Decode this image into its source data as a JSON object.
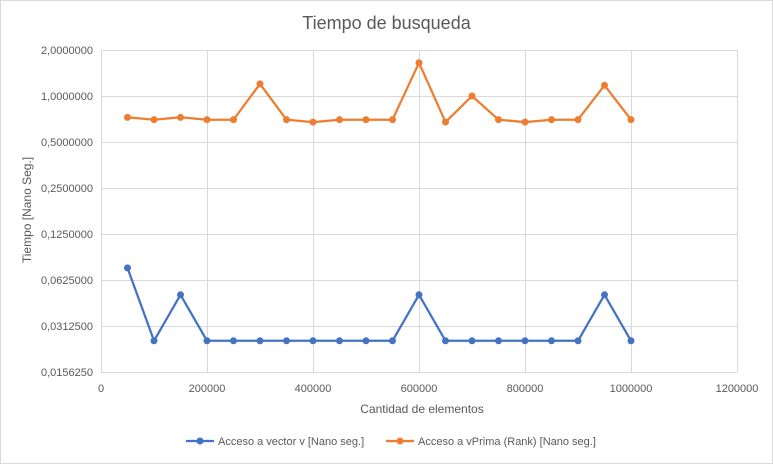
{
  "chart_data": {
    "type": "scatter",
    "title": "Tiempo de busqueda",
    "xlabel": "Cantidad de elementos",
    "ylabel": "Tiempo [Nano Seg.]",
    "x_scale": "linear",
    "y_scale": "log2",
    "xlim": [
      0,
      1200000
    ],
    "ylim": [
      0.015625,
      2
    ],
    "x_ticks": [
      0,
      200000,
      400000,
      600000,
      800000,
      1000000,
      1200000
    ],
    "x_tick_labels": [
      "0",
      "200000",
      "400000",
      "600000",
      "800000",
      "1000000",
      "1200000"
    ],
    "y_ticks": [
      0.015625,
      0.03125,
      0.0625,
      0.125,
      0.25,
      0.5,
      1,
      2
    ],
    "y_tick_labels": [
      "0,0156250",
      "0,0312500",
      "0,0625000",
      "0,1250000",
      "0,2500000",
      "0,5000000",
      "1,0000000",
      "2,0000000"
    ],
    "grid": true,
    "legend_position": "bottom",
    "x": [
      50000,
      100000,
      150000,
      200000,
      250000,
      300000,
      350000,
      400000,
      450000,
      500000,
      550000,
      600000,
      650000,
      700000,
      750000,
      800000,
      850000,
      900000,
      950000,
      1000000
    ],
    "series": [
      {
        "name": "Acceso a vector v [Nano seg.]",
        "color": "#4472c4",
        "values": [
          0.075,
          0.025,
          0.05,
          0.025,
          0.025,
          0.025,
          0.025,
          0.025,
          0.025,
          0.025,
          0.025,
          0.05,
          0.025,
          0.025,
          0.025,
          0.025,
          0.025,
          0.025,
          0.05,
          0.025
        ]
      },
      {
        "name": "Acceso a vPrima (Rank) [Nano seg.]",
        "color": "#ed7d31",
        "values": [
          0.725,
          0.7,
          0.725,
          0.7,
          0.7,
          1.2,
          0.7,
          0.675,
          0.7,
          0.7,
          0.7,
          1.65,
          0.675,
          1.0,
          0.7,
          0.675,
          0.7,
          0.7,
          1.175,
          0.7
        ]
      }
    ]
  }
}
